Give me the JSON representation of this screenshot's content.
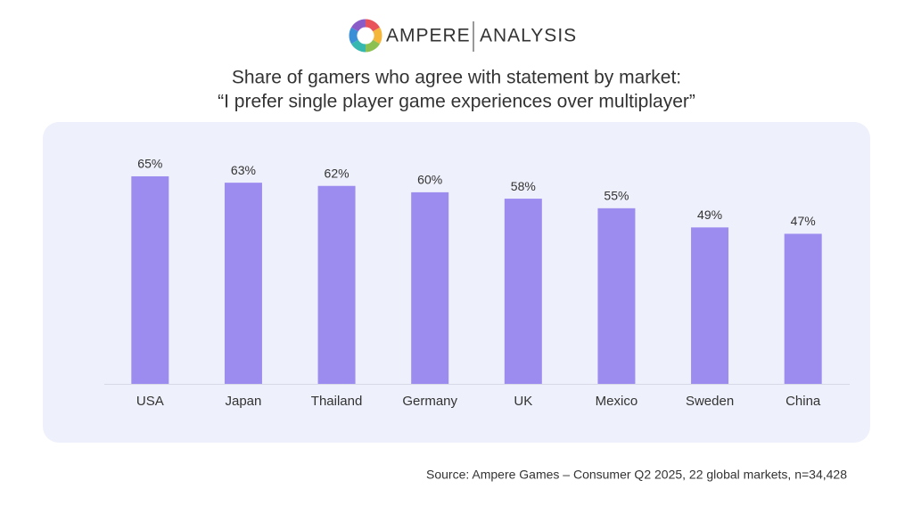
{
  "logo": {
    "brand": "AMPERE",
    "product": "ANALYSIS"
  },
  "chart_data": {
    "type": "bar",
    "title": [
      "Share of gamers who agree with statement by market:",
      "“I prefer single player game experiences over multiplayer”"
    ],
    "categories": [
      "USA",
      "Japan",
      "Thailand",
      "Germany",
      "UK",
      "Mexico",
      "Sweden",
      "China"
    ],
    "values": [
      65,
      63,
      62,
      60,
      58,
      55,
      49,
      47
    ],
    "value_labels": [
      "65%",
      "63%",
      "62%",
      "60%",
      "58%",
      "55%",
      "49%",
      "47%"
    ],
    "color": "#9c8cf0"
  },
  "source": "Source: Ampere Games – Consumer Q2 2025, 22 global markets, n=34,428"
}
